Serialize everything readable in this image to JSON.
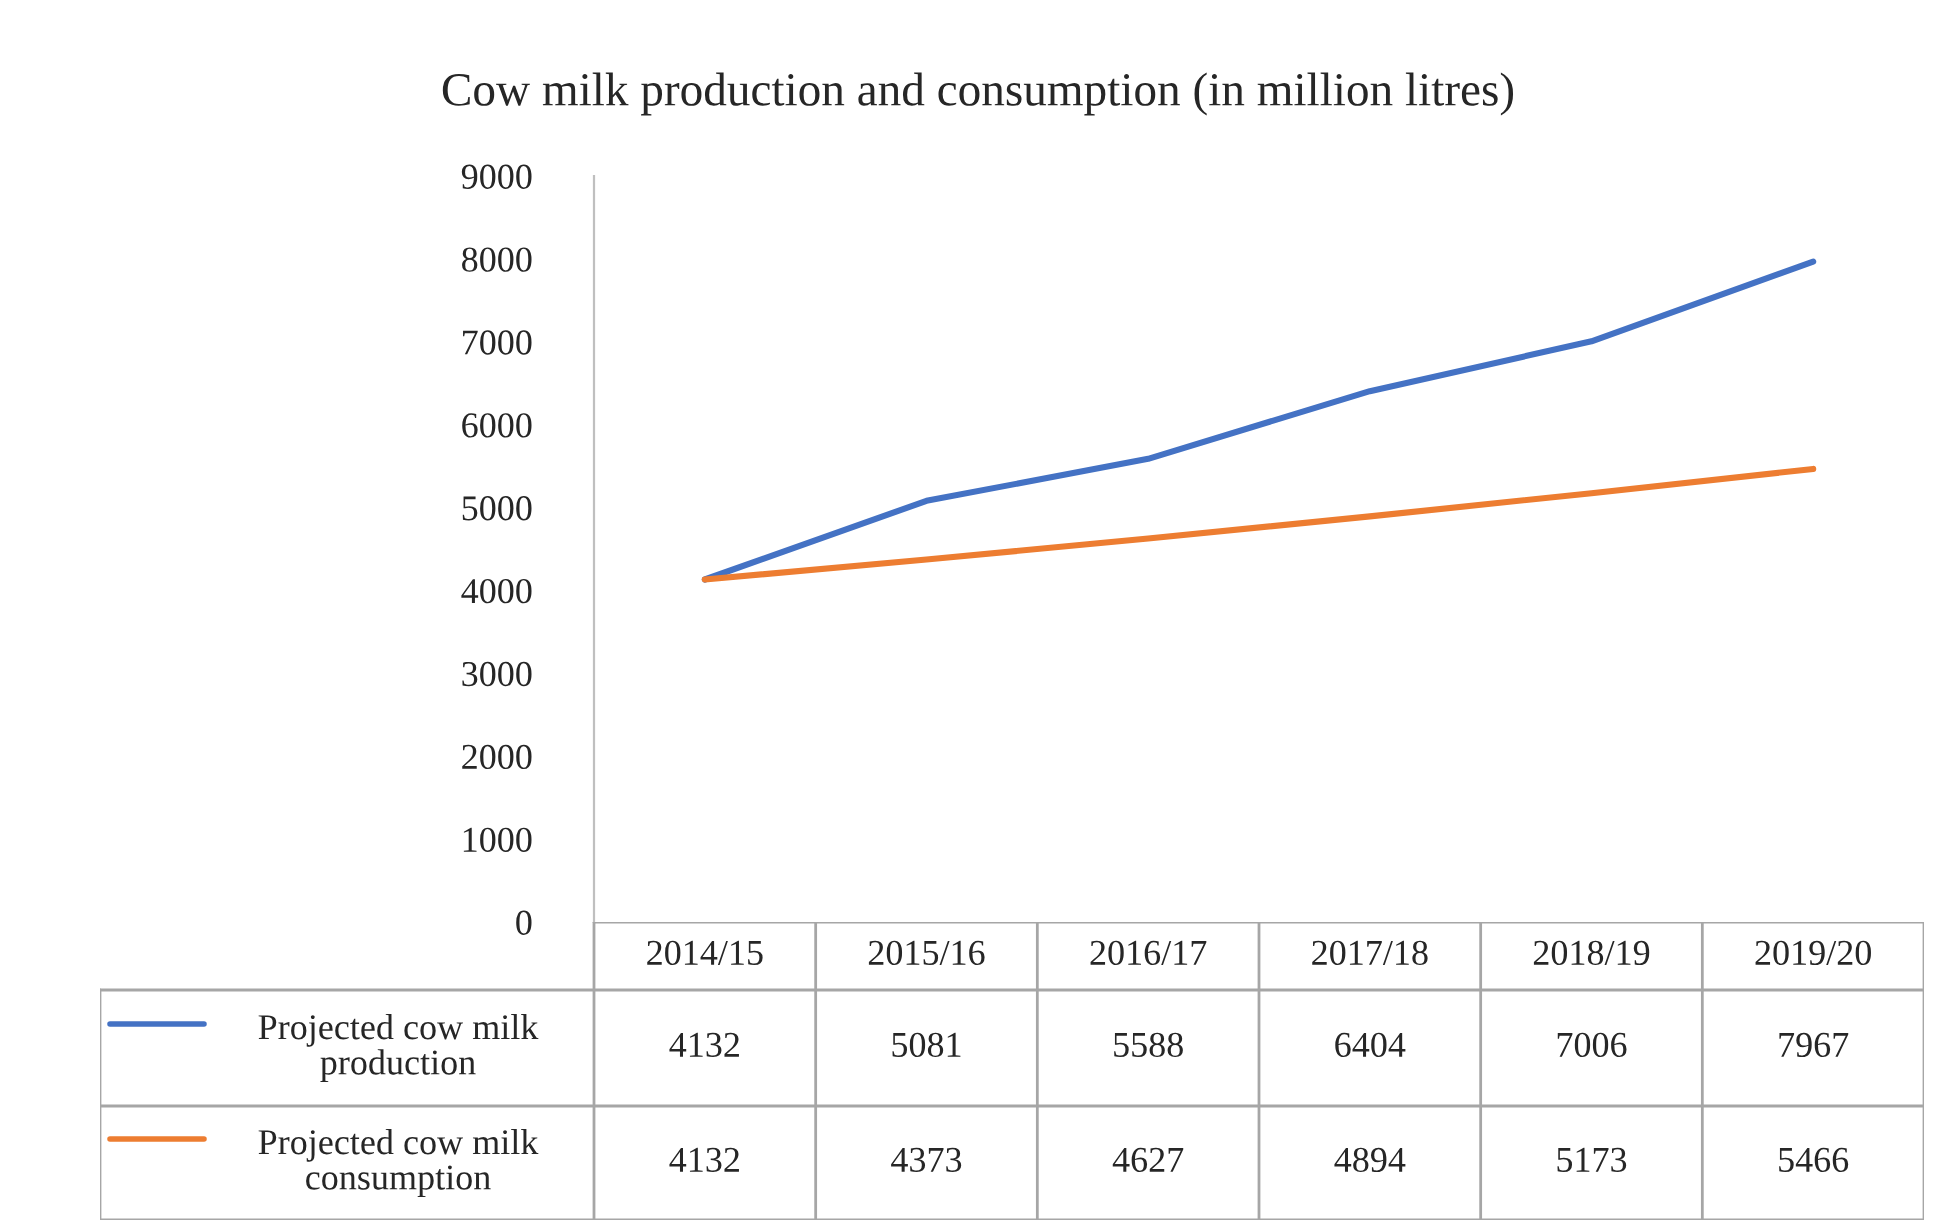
{
  "chart_data": {
    "type": "line",
    "title": "Cow milk production and consumption (in million litres)",
    "categories": [
      "2014/15",
      "2015/16",
      "2016/17",
      "2017/18",
      "2018/19",
      "2019/20"
    ],
    "series": [
      {
        "name": "Projected cow milk production",
        "color": "#4472c4",
        "values": [
          4132,
          5081,
          5588,
          6404,
          7006,
          7967
        ]
      },
      {
        "name": "Projected cow milk consumption",
        "color": "#ed7d31",
        "values": [
          4132,
          4373,
          4627,
          4894,
          5173,
          5466
        ]
      }
    ],
    "ylim": [
      0,
      9000
    ],
    "yticks": [
      0,
      1000,
      2000,
      3000,
      4000,
      5000,
      6000,
      7000,
      8000,
      9000
    ],
    "grid": false,
    "legend": "bottom",
    "data_labels": true,
    "marker": "none",
    "line_style": "solid"
  }
}
